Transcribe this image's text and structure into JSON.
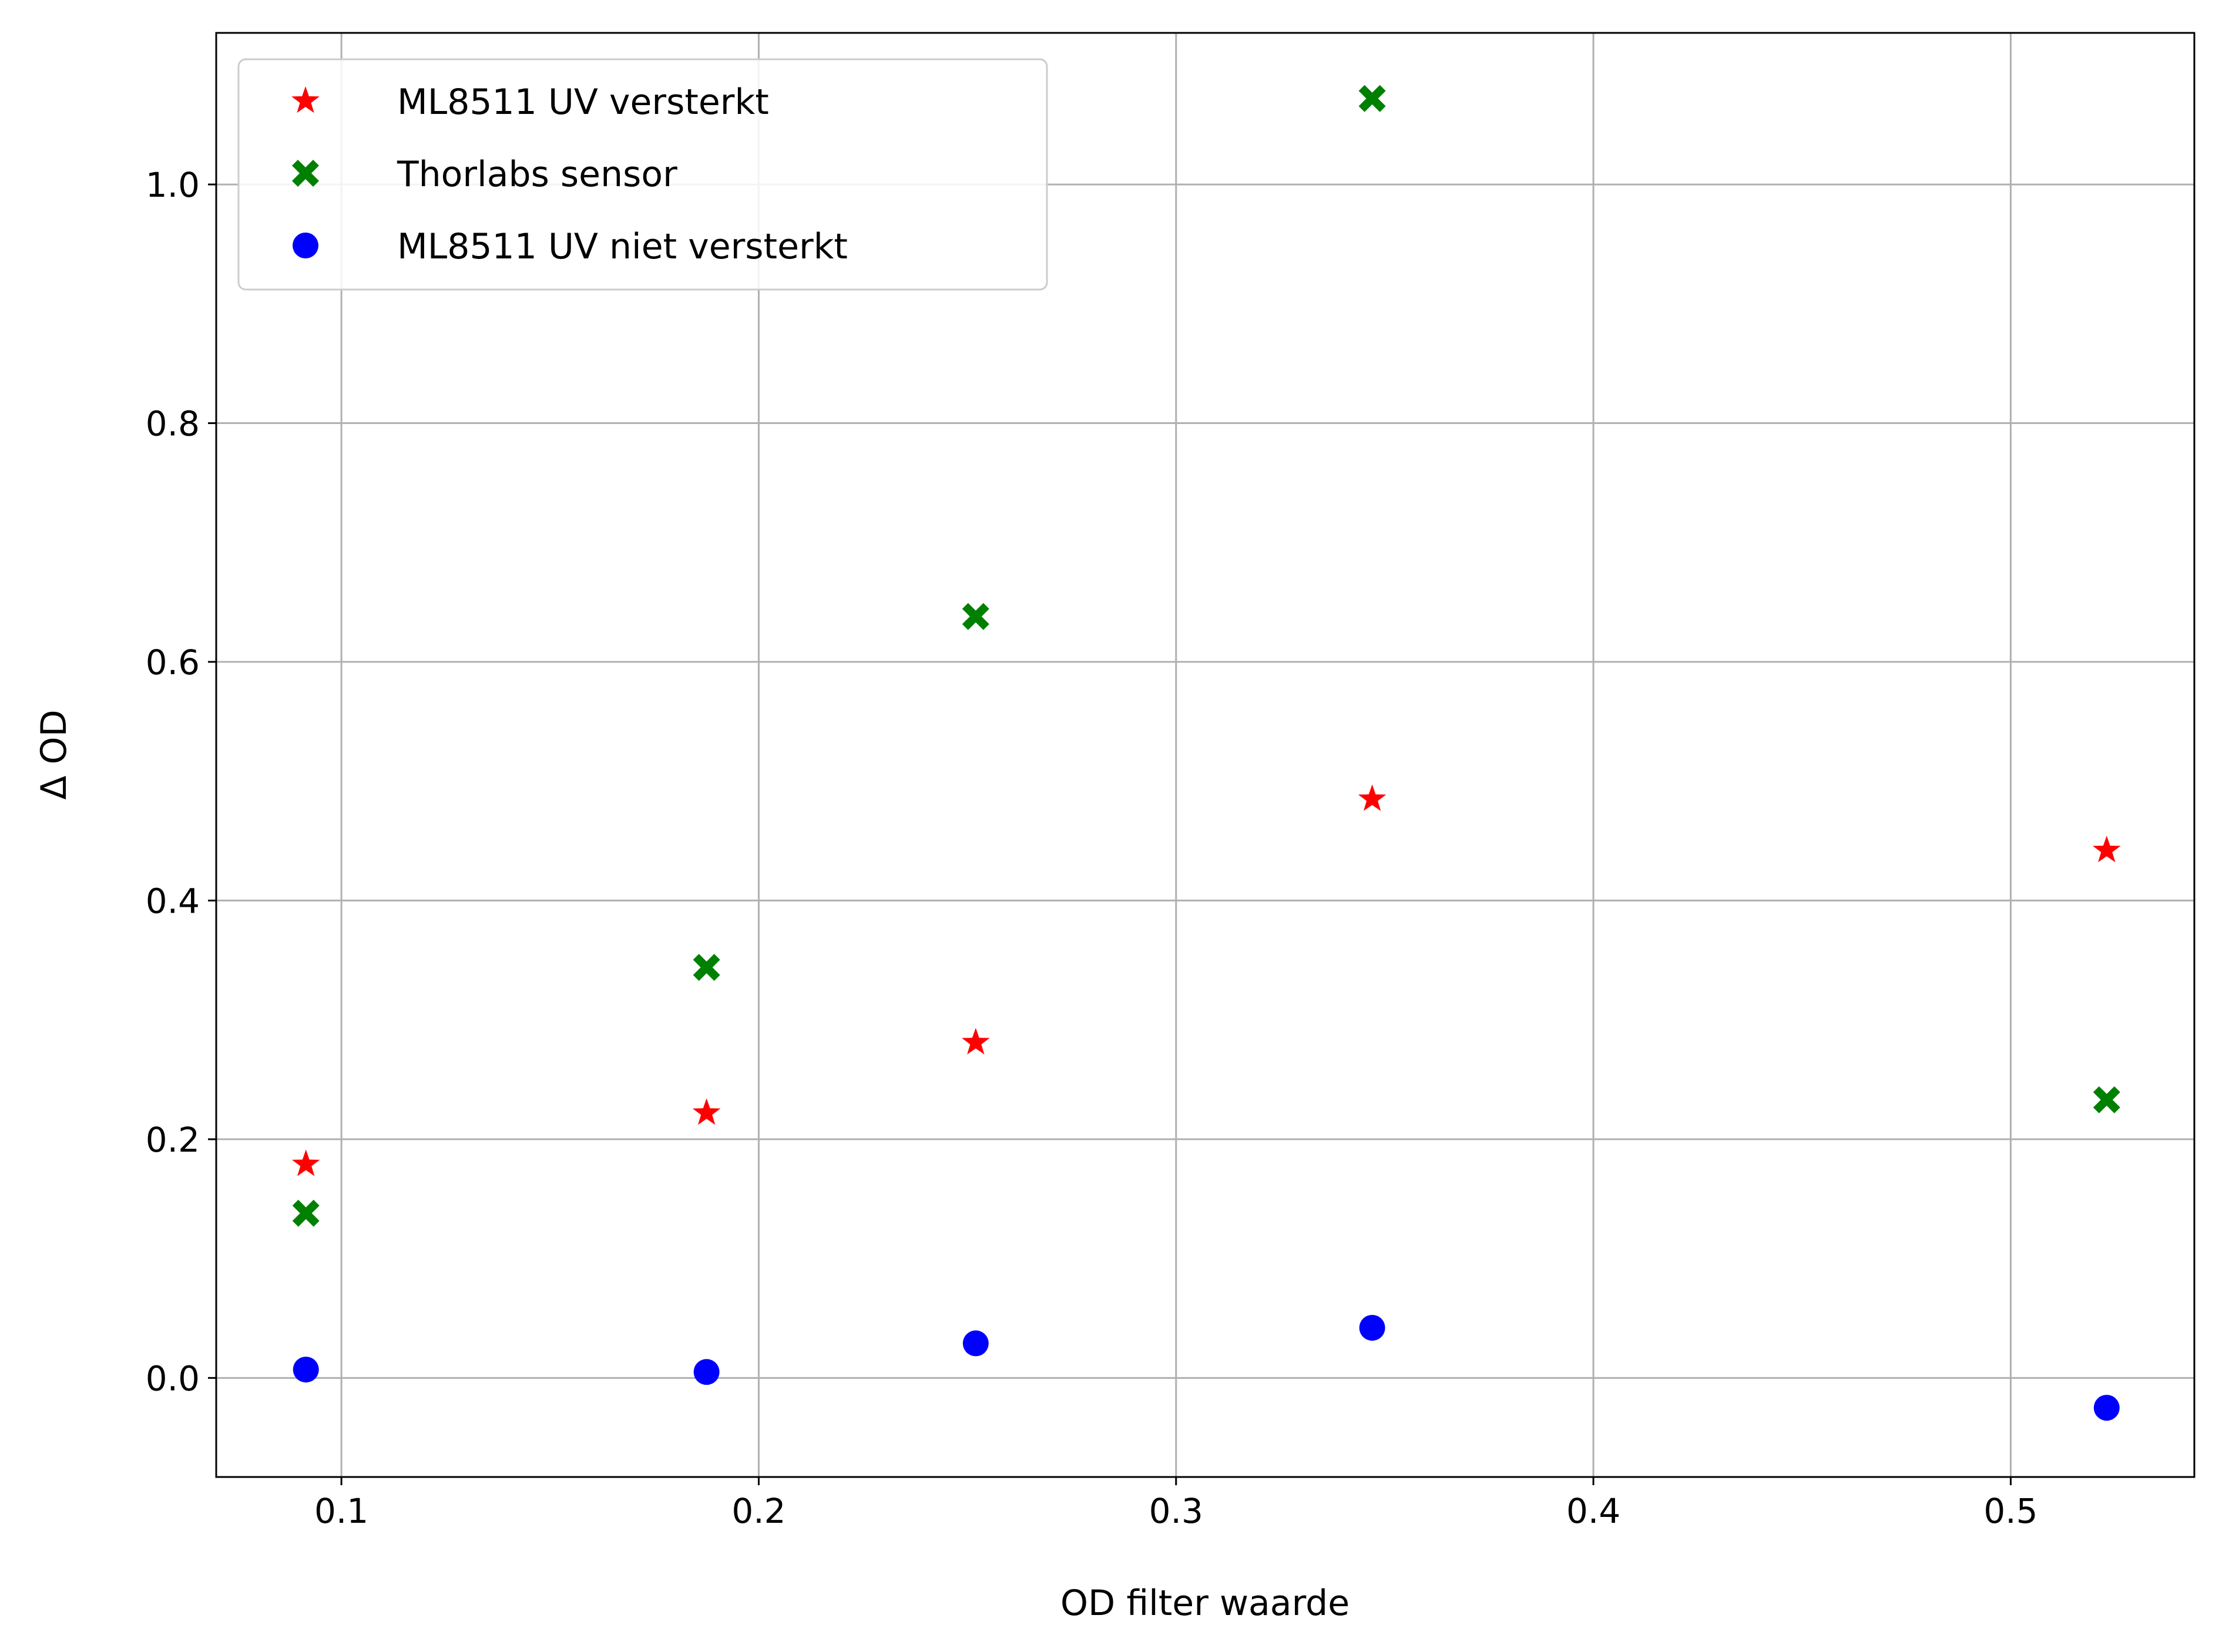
{
  "chart_data": {
    "type": "scatter",
    "title": "",
    "xlabel": "OD filter waarde",
    "ylabel": "Δ OD",
    "xlim": [
      0.07,
      0.544
    ],
    "ylim": [
      -0.083,
      1.127
    ],
    "grid": true,
    "legend_position": "top-left",
    "x_ticks": [
      0.1,
      0.2,
      0.3,
      0.4,
      0.5
    ],
    "x_tick_labels": [
      "0.1",
      "0.2",
      "0.3",
      "0.4",
      "0.5"
    ],
    "y_ticks": [
      0.0,
      0.2,
      0.4,
      0.6,
      0.8,
      1.0
    ],
    "y_tick_labels": [
      "0.0",
      "0.2",
      "0.4",
      "0.6",
      "0.8",
      "1.0"
    ],
    "series": [
      {
        "name": "ML8511 UV versterkt",
        "marker": "star",
        "color": "#ff0000",
        "points": [
          [
            0.0915,
            0.179
          ],
          [
            0.1875,
            0.222
          ],
          [
            0.252,
            0.281
          ],
          [
            0.347,
            0.485
          ],
          [
            0.523,
            0.442
          ]
        ]
      },
      {
        "name": "Thorlabs sensor",
        "marker": "x-filled",
        "color": "#008000",
        "points": [
          [
            0.0915,
            0.138
          ],
          [
            0.1875,
            0.344
          ],
          [
            0.252,
            0.638
          ],
          [
            0.347,
            1.072
          ],
          [
            0.523,
            0.233
          ]
        ]
      },
      {
        "name": "ML8511 UV niet versterkt",
        "marker": "circle",
        "color": "#0000ff",
        "points": [
          [
            0.0915,
            0.007
          ],
          [
            0.1875,
            0.005
          ],
          [
            0.252,
            0.029
          ],
          [
            0.347,
            0.042
          ],
          [
            0.523,
            -0.025
          ]
        ]
      }
    ]
  }
}
